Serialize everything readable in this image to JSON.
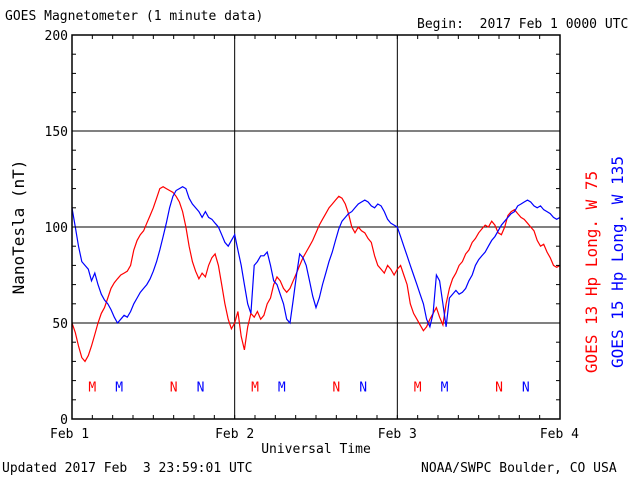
{
  "header": {
    "title": "GOES Magnetometer (1 minute data)",
    "begin": "Begin:  2017 Feb 1 0000 UTC"
  },
  "footer": {
    "updated": "Updated 2017 Feb  3 23:59:01 UTC",
    "credit": "NOAA/SWPC Boulder, CO USA"
  },
  "colors": {
    "goes13": "#ff0000",
    "goes15": "#0000ff",
    "grid": "#000000"
  },
  "chart_data": {
    "type": "line",
    "title": "GOES Magnetometer (1 minute data)",
    "xlabel": "Universal Time",
    "ylabel": "NanoTesla (nT)",
    "ylim": [
      0,
      200
    ],
    "xlim": [
      0,
      3
    ],
    "yticks": [
      0,
      50,
      100,
      150,
      200
    ],
    "xticks": [
      {
        "value": 0,
        "label": "Feb 1"
      },
      {
        "value": 1,
        "label": "Feb 2"
      },
      {
        "value": 2,
        "label": "Feb 3"
      },
      {
        "value": 3,
        "label": "Feb 4"
      }
    ],
    "grid": true,
    "x_unit": "days since 2017 Feb 1 0000 UTC",
    "series": [
      {
        "name": "GOES 13 Hp  Long. W 75",
        "color": "#ff0000",
        "points": [
          [
            0.0,
            50
          ],
          [
            0.02,
            45
          ],
          [
            0.04,
            38
          ],
          [
            0.06,
            32
          ],
          [
            0.08,
            30
          ],
          [
            0.1,
            33
          ],
          [
            0.12,
            38
          ],
          [
            0.14,
            44
          ],
          [
            0.16,
            50
          ],
          [
            0.18,
            55
          ],
          [
            0.2,
            58
          ],
          [
            0.22,
            63
          ],
          [
            0.24,
            68
          ],
          [
            0.26,
            71
          ],
          [
            0.28,
            73
          ],
          [
            0.3,
            75
          ],
          [
            0.32,
            76
          ],
          [
            0.34,
            77
          ],
          [
            0.36,
            80
          ],
          [
            0.38,
            88
          ],
          [
            0.4,
            93
          ],
          [
            0.42,
            96
          ],
          [
            0.44,
            98
          ],
          [
            0.46,
            102
          ],
          [
            0.48,
            106
          ],
          [
            0.5,
            110
          ],
          [
            0.52,
            115
          ],
          [
            0.54,
            120
          ],
          [
            0.56,
            121
          ],
          [
            0.58,
            120
          ],
          [
            0.6,
            119
          ],
          [
            0.62,
            118
          ],
          [
            0.64,
            116
          ],
          [
            0.66,
            113
          ],
          [
            0.68,
            108
          ],
          [
            0.7,
            100
          ],
          [
            0.72,
            90
          ],
          [
            0.74,
            82
          ],
          [
            0.76,
            77
          ],
          [
            0.78,
            73
          ],
          [
            0.8,
            76
          ],
          [
            0.82,
            74
          ],
          [
            0.84,
            80
          ],
          [
            0.86,
            84
          ],
          [
            0.88,
            86
          ],
          [
            0.9,
            80
          ],
          [
            0.92,
            70
          ],
          [
            0.94,
            60
          ],
          [
            0.96,
            52
          ],
          [
            0.98,
            47
          ],
          [
            1.0,
            50
          ],
          [
            1.02,
            56
          ],
          [
            1.04,
            43
          ],
          [
            1.06,
            36
          ],
          [
            1.08,
            48
          ],
          [
            1.1,
            55
          ],
          [
            1.12,
            53
          ],
          [
            1.14,
            56
          ],
          [
            1.16,
            52
          ],
          [
            1.18,
            54
          ],
          [
            1.2,
            60
          ],
          [
            1.22,
            63
          ],
          [
            1.24,
            70
          ],
          [
            1.26,
            74
          ],
          [
            1.28,
            72
          ],
          [
            1.3,
            68
          ],
          [
            1.32,
            66
          ],
          [
            1.34,
            68
          ],
          [
            1.36,
            72
          ],
          [
            1.38,
            76
          ],
          [
            1.4,
            80
          ],
          [
            1.42,
            84
          ],
          [
            1.44,
            87
          ],
          [
            1.46,
            90
          ],
          [
            1.48,
            93
          ],
          [
            1.5,
            97
          ],
          [
            1.52,
            101
          ],
          [
            1.54,
            104
          ],
          [
            1.56,
            107
          ],
          [
            1.58,
            110
          ],
          [
            1.6,
            112
          ],
          [
            1.62,
            114
          ],
          [
            1.64,
            116
          ],
          [
            1.66,
            115
          ],
          [
            1.68,
            112
          ],
          [
            1.7,
            107
          ],
          [
            1.72,
            100
          ],
          [
            1.74,
            97
          ],
          [
            1.76,
            100
          ],
          [
            1.78,
            98
          ],
          [
            1.8,
            97
          ],
          [
            1.82,
            94
          ],
          [
            1.84,
            92
          ],
          [
            1.86,
            85
          ],
          [
            1.88,
            80
          ],
          [
            1.9,
            78
          ],
          [
            1.92,
            76
          ],
          [
            1.94,
            80
          ],
          [
            1.96,
            78
          ],
          [
            1.98,
            75
          ],
          [
            2.0,
            78
          ],
          [
            2.02,
            80
          ],
          [
            2.04,
            75
          ],
          [
            2.06,
            70
          ],
          [
            2.08,
            60
          ],
          [
            2.1,
            55
          ],
          [
            2.12,
            52
          ],
          [
            2.14,
            49
          ],
          [
            2.16,
            46
          ],
          [
            2.18,
            48
          ],
          [
            2.2,
            52
          ],
          [
            2.22,
            55
          ],
          [
            2.24,
            58
          ],
          [
            2.26,
            53
          ],
          [
            2.28,
            49
          ],
          [
            2.3,
            60
          ],
          [
            2.32,
            68
          ],
          [
            2.34,
            73
          ],
          [
            2.36,
            76
          ],
          [
            2.38,
            80
          ],
          [
            2.4,
            82
          ],
          [
            2.42,
            86
          ],
          [
            2.44,
            88
          ],
          [
            2.46,
            92
          ],
          [
            2.48,
            94
          ],
          [
            2.5,
            97
          ],
          [
            2.52,
            99
          ],
          [
            2.54,
            101
          ],
          [
            2.56,
            100
          ],
          [
            2.58,
            103
          ],
          [
            2.6,
            101
          ],
          [
            2.62,
            97
          ],
          [
            2.64,
            96
          ],
          [
            2.66,
            100
          ],
          [
            2.68,
            106
          ],
          [
            2.7,
            108
          ],
          [
            2.72,
            109
          ],
          [
            2.74,
            107
          ],
          [
            2.76,
            105
          ],
          [
            2.78,
            104
          ],
          [
            2.8,
            102
          ],
          [
            2.82,
            100
          ],
          [
            2.84,
            98
          ],
          [
            2.86,
            93
          ],
          [
            2.88,
            90
          ],
          [
            2.9,
            91
          ],
          [
            2.92,
            87
          ],
          [
            2.94,
            84
          ],
          [
            2.96,
            80
          ],
          [
            2.98,
            79
          ],
          [
            3.0,
            80
          ]
        ]
      },
      {
        "name": "GOES 15 Hp  Long. W 135",
        "color": "#0000ff",
        "points": [
          [
            0.0,
            110
          ],
          [
            0.02,
            100
          ],
          [
            0.04,
            90
          ],
          [
            0.06,
            82
          ],
          [
            0.08,
            80
          ],
          [
            0.1,
            78
          ],
          [
            0.12,
            72
          ],
          [
            0.14,
            76
          ],
          [
            0.16,
            70
          ],
          [
            0.18,
            65
          ],
          [
            0.2,
            62
          ],
          [
            0.22,
            60
          ],
          [
            0.24,
            57
          ],
          [
            0.26,
            53
          ],
          [
            0.28,
            50
          ],
          [
            0.3,
            52
          ],
          [
            0.32,
            54
          ],
          [
            0.34,
            53
          ],
          [
            0.36,
            56
          ],
          [
            0.38,
            60
          ],
          [
            0.4,
            63
          ],
          [
            0.42,
            66
          ],
          [
            0.44,
            68
          ],
          [
            0.46,
            70
          ],
          [
            0.48,
            73
          ],
          [
            0.5,
            77
          ],
          [
            0.52,
            82
          ],
          [
            0.54,
            88
          ],
          [
            0.56,
            95
          ],
          [
            0.58,
            102
          ],
          [
            0.6,
            110
          ],
          [
            0.62,
            116
          ],
          [
            0.64,
            119
          ],
          [
            0.66,
            120
          ],
          [
            0.68,
            121
          ],
          [
            0.7,
            120
          ],
          [
            0.72,
            115
          ],
          [
            0.74,
            112
          ],
          [
            0.76,
            110
          ],
          [
            0.78,
            108
          ],
          [
            0.8,
            105
          ],
          [
            0.82,
            108
          ],
          [
            0.84,
            105
          ],
          [
            0.86,
            104
          ],
          [
            0.88,
            102
          ],
          [
            0.9,
            100
          ],
          [
            0.92,
            96
          ],
          [
            0.94,
            92
          ],
          [
            0.96,
            90
          ],
          [
            0.98,
            93
          ],
          [
            1.0,
            96
          ],
          [
            1.02,
            88
          ],
          [
            1.04,
            80
          ],
          [
            1.06,
            70
          ],
          [
            1.08,
            60
          ],
          [
            1.1,
            55
          ],
          [
            1.12,
            80
          ],
          [
            1.14,
            82
          ],
          [
            1.16,
            85
          ],
          [
            1.18,
            85
          ],
          [
            1.2,
            87
          ],
          [
            1.22,
            80
          ],
          [
            1.24,
            72
          ],
          [
            1.26,
            70
          ],
          [
            1.28,
            65
          ],
          [
            1.3,
            60
          ],
          [
            1.32,
            52
          ],
          [
            1.34,
            50
          ],
          [
            1.36,
            62
          ],
          [
            1.38,
            75
          ],
          [
            1.4,
            86
          ],
          [
            1.42,
            84
          ],
          [
            1.44,
            80
          ],
          [
            1.46,
            72
          ],
          [
            1.48,
            64
          ],
          [
            1.5,
            58
          ],
          [
            1.52,
            63
          ],
          [
            1.54,
            70
          ],
          [
            1.56,
            76
          ],
          [
            1.58,
            82
          ],
          [
            1.6,
            87
          ],
          [
            1.62,
            93
          ],
          [
            1.64,
            99
          ],
          [
            1.66,
            103
          ],
          [
            1.68,
            105
          ],
          [
            1.7,
            107
          ],
          [
            1.72,
            108
          ],
          [
            1.74,
            110
          ],
          [
            1.76,
            112
          ],
          [
            1.78,
            113
          ],
          [
            1.8,
            114
          ],
          [
            1.82,
            113
          ],
          [
            1.84,
            111
          ],
          [
            1.86,
            110
          ],
          [
            1.88,
            112
          ],
          [
            1.9,
            111
          ],
          [
            1.92,
            108
          ],
          [
            1.94,
            104
          ],
          [
            1.96,
            102
          ],
          [
            1.98,
            101
          ],
          [
            2.0,
            100
          ],
          [
            2.02,
            95
          ],
          [
            2.04,
            90
          ],
          [
            2.06,
            85
          ],
          [
            2.08,
            80
          ],
          [
            2.1,
            75
          ],
          [
            2.12,
            70
          ],
          [
            2.14,
            65
          ],
          [
            2.16,
            60
          ],
          [
            2.18,
            52
          ],
          [
            2.2,
            48
          ],
          [
            2.22,
            55
          ],
          [
            2.24,
            75
          ],
          [
            2.26,
            72
          ],
          [
            2.28,
            60
          ],
          [
            2.3,
            48
          ],
          [
            2.32,
            63
          ],
          [
            2.34,
            65
          ],
          [
            2.36,
            67
          ],
          [
            2.38,
            65
          ],
          [
            2.4,
            66
          ],
          [
            2.42,
            68
          ],
          [
            2.44,
            72
          ],
          [
            2.46,
            75
          ],
          [
            2.48,
            80
          ],
          [
            2.5,
            83
          ],
          [
            2.52,
            85
          ],
          [
            2.54,
            87
          ],
          [
            2.56,
            90
          ],
          [
            2.58,
            93
          ],
          [
            2.6,
            95
          ],
          [
            2.62,
            98
          ],
          [
            2.64,
            101
          ],
          [
            2.66,
            103
          ],
          [
            2.68,
            105
          ],
          [
            2.7,
            107
          ],
          [
            2.72,
            108
          ],
          [
            2.74,
            111
          ],
          [
            2.76,
            112
          ],
          [
            2.78,
            113
          ],
          [
            2.8,
            114
          ],
          [
            2.82,
            113
          ],
          [
            2.84,
            111
          ],
          [
            2.86,
            110
          ],
          [
            2.88,
            111
          ],
          [
            2.9,
            109
          ],
          [
            2.92,
            108
          ],
          [
            2.94,
            107
          ],
          [
            2.96,
            105
          ],
          [
            2.98,
            104
          ],
          [
            3.0,
            105
          ]
        ]
      }
    ],
    "markers": [
      {
        "x": 0.125,
        "label": "M",
        "series": 0
      },
      {
        "x": 0.29,
        "label": "M",
        "series": 1
      },
      {
        "x": 0.625,
        "label": "N",
        "series": 0
      },
      {
        "x": 0.79,
        "label": "N",
        "series": 1
      },
      {
        "x": 1.125,
        "label": "M",
        "series": 0
      },
      {
        "x": 1.29,
        "label": "M",
        "series": 1
      },
      {
        "x": 1.625,
        "label": "N",
        "series": 0
      },
      {
        "x": 1.79,
        "label": "N",
        "series": 1
      },
      {
        "x": 2.125,
        "label": "M",
        "series": 0
      },
      {
        "x": 2.29,
        "label": "M",
        "series": 1
      },
      {
        "x": 2.625,
        "label": "N",
        "series": 0
      },
      {
        "x": 2.79,
        "label": "N",
        "series": 1
      }
    ],
    "marker_y": 17
  }
}
